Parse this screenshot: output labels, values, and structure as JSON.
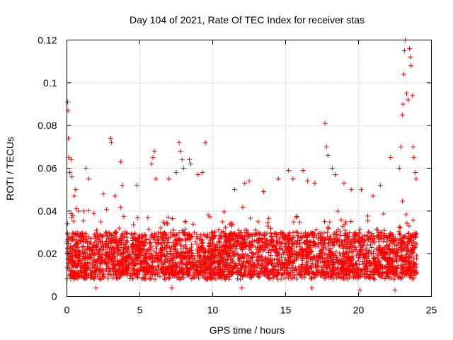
{
  "chart_data": {
    "type": "scatter",
    "title": "Day 104 of 2021, Rate Of TEC Index for receiver stas",
    "xlabel": "GPS time / hours",
    "ylabel": "ROTI / TECUs",
    "xlim": [
      0,
      25
    ],
    "ylim": [
      0,
      0.12
    ],
    "x_ticks": [
      0,
      5,
      10,
      15,
      20,
      25
    ],
    "x_tick_labels": [
      "0",
      "5",
      "10",
      "15",
      "20",
      "25"
    ],
    "y_ticks": [
      0,
      0.02,
      0.04,
      0.06,
      0.08,
      0.1,
      0.12
    ],
    "y_tick_labels": [
      "0",
      "0.02",
      "0.04",
      "0.06",
      "0.08",
      "0.1",
      "0.12"
    ],
    "grid": true,
    "marker": "+",
    "color": "#ff0000",
    "series": [
      {
        "name": "ROTI",
        "points": [
          [
            0.05,
            0.091
          ],
          [
            0.08,
            0.087
          ],
          [
            0.1,
            0.074
          ],
          [
            0.12,
            0.065
          ],
          [
            0.2,
            0.058
          ],
          [
            0.3,
            0.064
          ],
          [
            0.35,
            0.056
          ],
          [
            0.5,
            0.047
          ],
          [
            0.6,
            0.05
          ],
          [
            0.8,
            0.04
          ],
          [
            1.3,
            0.06
          ],
          [
            1.5,
            0.055
          ],
          [
            2.5,
            0.048
          ],
          [
            3.0,
            0.074
          ],
          [
            3.05,
            0.072
          ],
          [
            3.3,
            0.047
          ],
          [
            3.7,
            0.063
          ],
          [
            3.8,
            0.052
          ],
          [
            4.8,
            0.052
          ],
          [
            5.8,
            0.062
          ],
          [
            5.9,
            0.065
          ],
          [
            6.0,
            0.068
          ],
          [
            6.1,
            0.055
          ],
          [
            7.0,
            0.055
          ],
          [
            7.5,
            0.058
          ],
          [
            7.7,
            0.072
          ],
          [
            7.8,
            0.068
          ],
          [
            7.9,
            0.064
          ],
          [
            8.0,
            0.06
          ],
          [
            8.4,
            0.064
          ],
          [
            8.5,
            0.062
          ],
          [
            9.0,
            0.057
          ],
          [
            9.3,
            0.058
          ],
          [
            9.5,
            0.072
          ],
          [
            11.5,
            0.05
          ],
          [
            12.2,
            0.053
          ],
          [
            12.5,
            0.054
          ],
          [
            13.5,
            0.049
          ],
          [
            14.5,
            0.055
          ],
          [
            15.2,
            0.059
          ],
          [
            15.5,
            0.055
          ],
          [
            16.2,
            0.059
          ],
          [
            16.5,
            0.054
          ],
          [
            17.0,
            0.053
          ],
          [
            17.7,
            0.081
          ],
          [
            17.8,
            0.07
          ],
          [
            17.9,
            0.066
          ],
          [
            18.2,
            0.06
          ],
          [
            18.4,
            0.057
          ],
          [
            19.0,
            0.053
          ],
          [
            19.5,
            0.05
          ],
          [
            20.2,
            0.05
          ],
          [
            21.0,
            0.047
          ],
          [
            21.5,
            0.052
          ],
          [
            22.2,
            0.065
          ],
          [
            22.8,
            0.06
          ],
          [
            22.9,
            0.07
          ],
          [
            23.0,
            0.085
          ],
          [
            23.05,
            0.09
          ],
          [
            23.1,
            0.104
          ],
          [
            23.15,
            0.115
          ],
          [
            23.2,
            0.12
          ],
          [
            23.3,
            0.095
          ],
          [
            23.4,
            0.092
          ],
          [
            23.5,
            0.116
          ],
          [
            23.55,
            0.112
          ],
          [
            23.6,
            0.108
          ],
          [
            23.7,
            0.094
          ],
          [
            23.75,
            0.07
          ],
          [
            23.8,
            0.065
          ],
          [
            23.9,
            0.058
          ],
          [
            23.95,
            0.055
          ],
          [
            22.5,
            0.003
          ],
          [
            20.1,
            0.003
          ],
          [
            2.0,
            0.004
          ],
          [
            7.2,
            0.004
          ],
          [
            12.0,
            0.004
          ],
          [
            16.8,
            0.004
          ]
        ]
      }
    ],
    "dense_band": {
      "note": "thousands of points forming a dense red band between about 0.005 and 0.03 ROTI over 0-24 h",
      "x_range": [
        0,
        24
      ],
      "y_range": [
        0.005,
        0.03
      ]
    }
  }
}
